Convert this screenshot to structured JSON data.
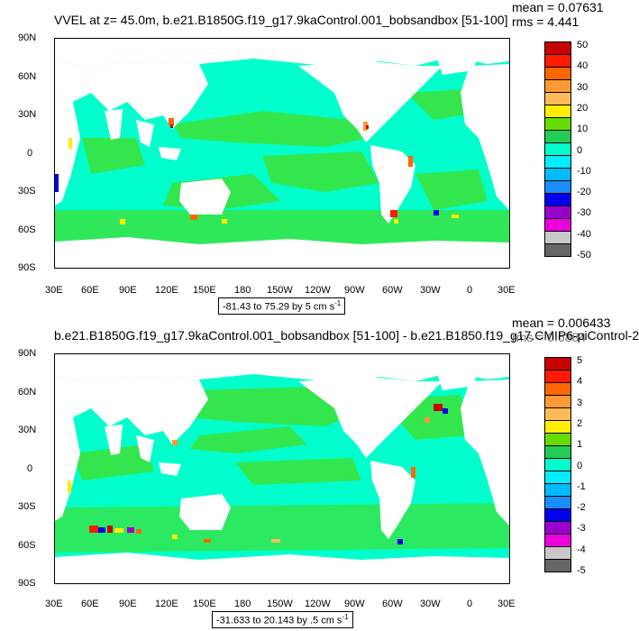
{
  "panels": [
    {
      "title": "VVEL at z=  45.0m, b.e21.B1850G.f19_g17.9kaControl.001_bobsandbox [51-100]",
      "mean": "mean = 0.07631",
      "rms": "rms = 4.441",
      "range_text": "-81.43 to 75.29 by 5 cm s",
      "range_unit_exp": "-1",
      "colorbar_labels": [
        "50",
        "40",
        "30",
        "20",
        "10",
        "0",
        "-10",
        "-20",
        "-30",
        "-40",
        "-50"
      ]
    },
    {
      "title": "b.e21.B1850G.f19_g17.9kaControl.001_bobsandbox [51-100] - b.e21.B1850.f19_g17.CMIP6-piControl-2",
      "mean": "mean = 0.006433",
      "rms": "rms = 0.6884",
      "range_text": "-31.633 to 20.143 by .5 cm s",
      "range_unit_exp": "-1",
      "colorbar_labels": [
        "5",
        "4",
        "3",
        "2",
        "1",
        "0",
        "-1",
        "-2",
        "-3",
        "-4",
        "-5"
      ]
    }
  ],
  "lat_labels": [
    "90N",
    "60N",
    "30N",
    "0",
    "30S",
    "60S",
    "90S"
  ],
  "lon_labels": [
    "30E",
    "60E",
    "90E",
    "120E",
    "150E",
    "180",
    "150W",
    "120W",
    "90W",
    "60W",
    "30W",
    "0",
    "30E"
  ],
  "colors": {
    "ocean_main": "#00ffcc",
    "ocean_green": "#33e64d",
    "land": "#ffffff",
    "colorbar": [
      "#c80000",
      "#ff1a00",
      "#ff6600",
      "#ff9933",
      "#ffbb55",
      "#ffee00",
      "#66dd00",
      "#22cc55",
      "#00ffcc",
      "#00eeff",
      "#00bbff",
      "#1a8cff",
      "#0000ee",
      "#9a00cc",
      "#ee00dd",
      "#c8c8c8",
      "#666666"
    ]
  }
}
